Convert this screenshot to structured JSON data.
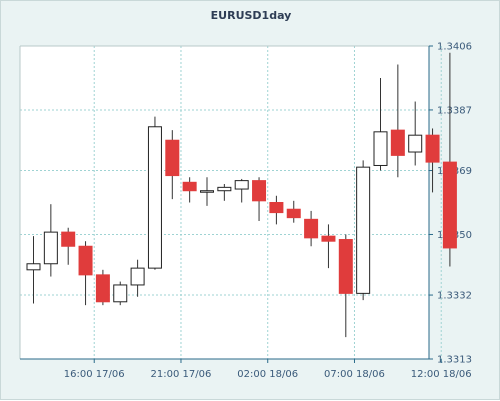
{
  "chart_data": {
    "type": "candlestick",
    "title": "EURUSD1day",
    "xlabel": "",
    "ylabel": "",
    "ylim": [
      1.3313,
      1.3406
    ],
    "y_ticks": [
      "1.3313",
      "1.3332",
      "1.3350",
      "1.3369",
      "1.3387",
      "1.3406"
    ],
    "x_ticks": [
      {
        "index": 4,
        "label": "16:00 17/06"
      },
      {
        "index": 9,
        "label": "21:00 17/06"
      },
      {
        "index": 14,
        "label": "02:00 18/06"
      },
      {
        "index": 19,
        "label": "07:00 18/06"
      },
      {
        "index": 24,
        "label": "12:00 18/06"
      }
    ],
    "grid": true,
    "colors": {
      "up": "#ffffff",
      "down": "#e03c3c",
      "outline": "#222222",
      "wick": "#333333",
      "grid": "#9fd3d3",
      "axis": "#2a6a8a",
      "plot_bg": "#ffffff",
      "page_bg": "#eaf3f3"
    },
    "candles": [
      {
        "open": 1.33395,
        "high": 1.33495,
        "low": 1.33295,
        "close": 1.33413
      },
      {
        "open": 1.33413,
        "high": 1.3359,
        "low": 1.33375,
        "close": 1.33507
      },
      {
        "open": 1.33507,
        "high": 1.3352,
        "low": 1.3341,
        "close": 1.33465
      },
      {
        "open": 1.33465,
        "high": 1.3348,
        "low": 1.3329,
        "close": 1.3338
      },
      {
        "open": 1.3338,
        "high": 1.33395,
        "low": 1.3329,
        "close": 1.333
      },
      {
        "open": 1.333,
        "high": 1.3336,
        "low": 1.3329,
        "close": 1.3335
      },
      {
        "open": 1.3335,
        "high": 1.33425,
        "low": 1.33315,
        "close": 1.334
      },
      {
        "open": 1.334,
        "high": 1.3385,
        "low": 1.33395,
        "close": 1.3382
      },
      {
        "open": 1.3378,
        "high": 1.3381,
        "low": 1.33605,
        "close": 1.33675
      },
      {
        "open": 1.33655,
        "high": 1.3367,
        "low": 1.33595,
        "close": 1.3363
      },
      {
        "open": 1.3363,
        "high": 1.3367,
        "low": 1.33585,
        "close": 1.3363
      },
      {
        "open": 1.3363,
        "high": 1.3365,
        "low": 1.336,
        "close": 1.3364
      },
      {
        "open": 1.33635,
        "high": 1.33665,
        "low": 1.33595,
        "close": 1.3366
      },
      {
        "open": 1.3366,
        "high": 1.3367,
        "low": 1.3354,
        "close": 1.336
      },
      {
        "open": 1.33595,
        "high": 1.33615,
        "low": 1.3353,
        "close": 1.33565
      },
      {
        "open": 1.33575,
        "high": 1.336,
        "low": 1.33535,
        "close": 1.3355
      },
      {
        "open": 1.33545,
        "high": 1.3357,
        "low": 1.33465,
        "close": 1.3349
      },
      {
        "open": 1.33495,
        "high": 1.3353,
        "low": 1.334,
        "close": 1.3348
      },
      {
        "open": 1.33485,
        "high": 1.335,
        "low": 1.33195,
        "close": 1.33325
      },
      {
        "open": 1.33325,
        "high": 1.3372,
        "low": 1.33305,
        "close": 1.337
      },
      {
        "open": 1.33705,
        "high": 1.33965,
        "low": 1.3369,
        "close": 1.33805
      },
      {
        "open": 1.3381,
        "high": 1.34005,
        "low": 1.3367,
        "close": 1.33735
      },
      {
        "open": 1.33745,
        "high": 1.33895,
        "low": 1.33705,
        "close": 1.33795
      },
      {
        "open": 1.33795,
        "high": 1.33815,
        "low": 1.33625,
        "close": 1.33715
      },
      {
        "open": 1.33715,
        "high": 1.3404,
        "low": 1.33405,
        "close": 1.3346
      }
    ]
  }
}
